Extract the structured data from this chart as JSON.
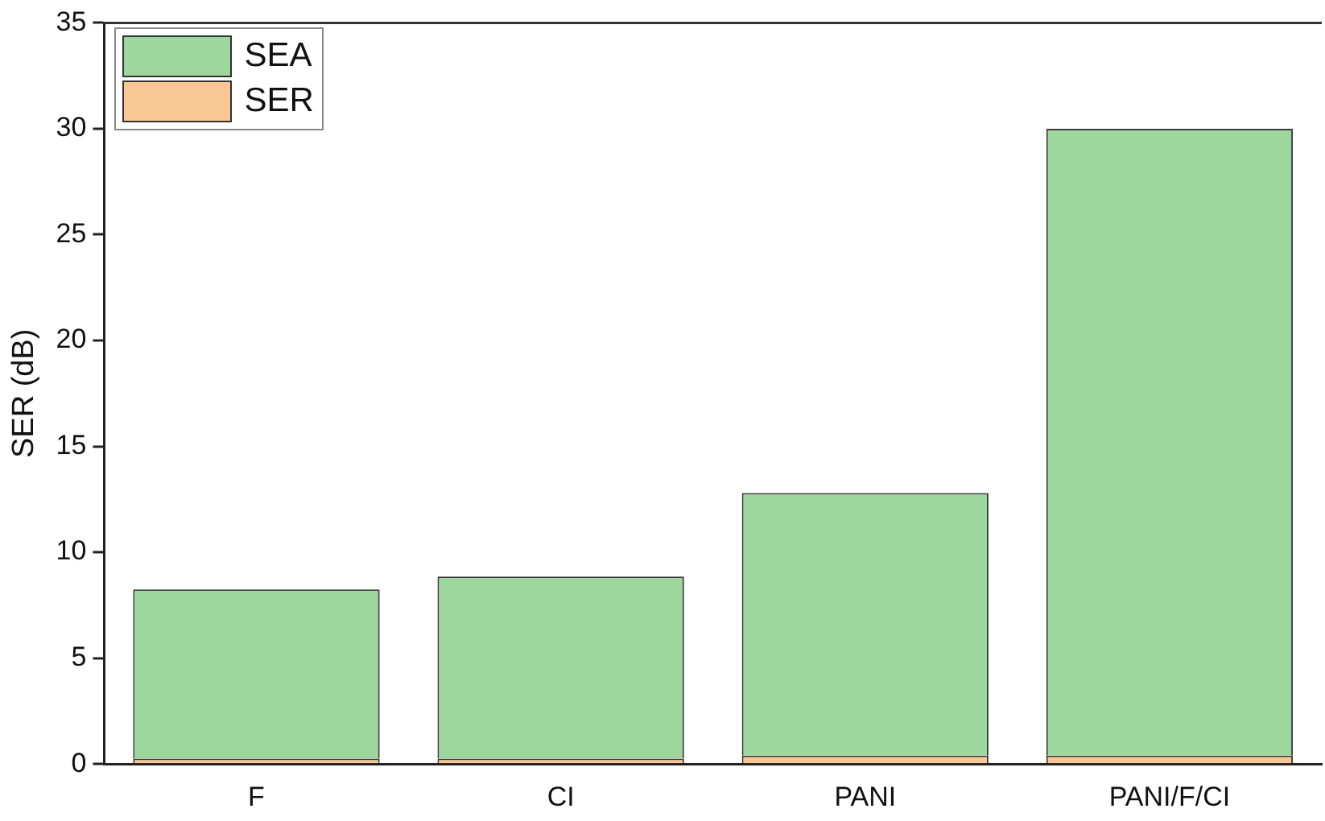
{
  "chart_data": {
    "type": "bar",
    "ylabel": "SER (dB)",
    "categories": [
      "F",
      "CI",
      "PANI",
      "PANI/F/CI"
    ],
    "stacked": true,
    "series": [
      {
        "name": "SER",
        "color": "#f9c794",
        "values": [
          0.25,
          0.25,
          0.4,
          0.4
        ]
      },
      {
        "name": "SEA",
        "color": "#9dd79d",
        "values": [
          8.0,
          8.6,
          12.4,
          29.6
        ]
      }
    ],
    "ylim": [
      0,
      35
    ],
    "yticks": [
      0,
      5,
      10,
      15,
      20,
      25,
      30,
      35
    ],
    "grid": false,
    "legend": "top left"
  }
}
